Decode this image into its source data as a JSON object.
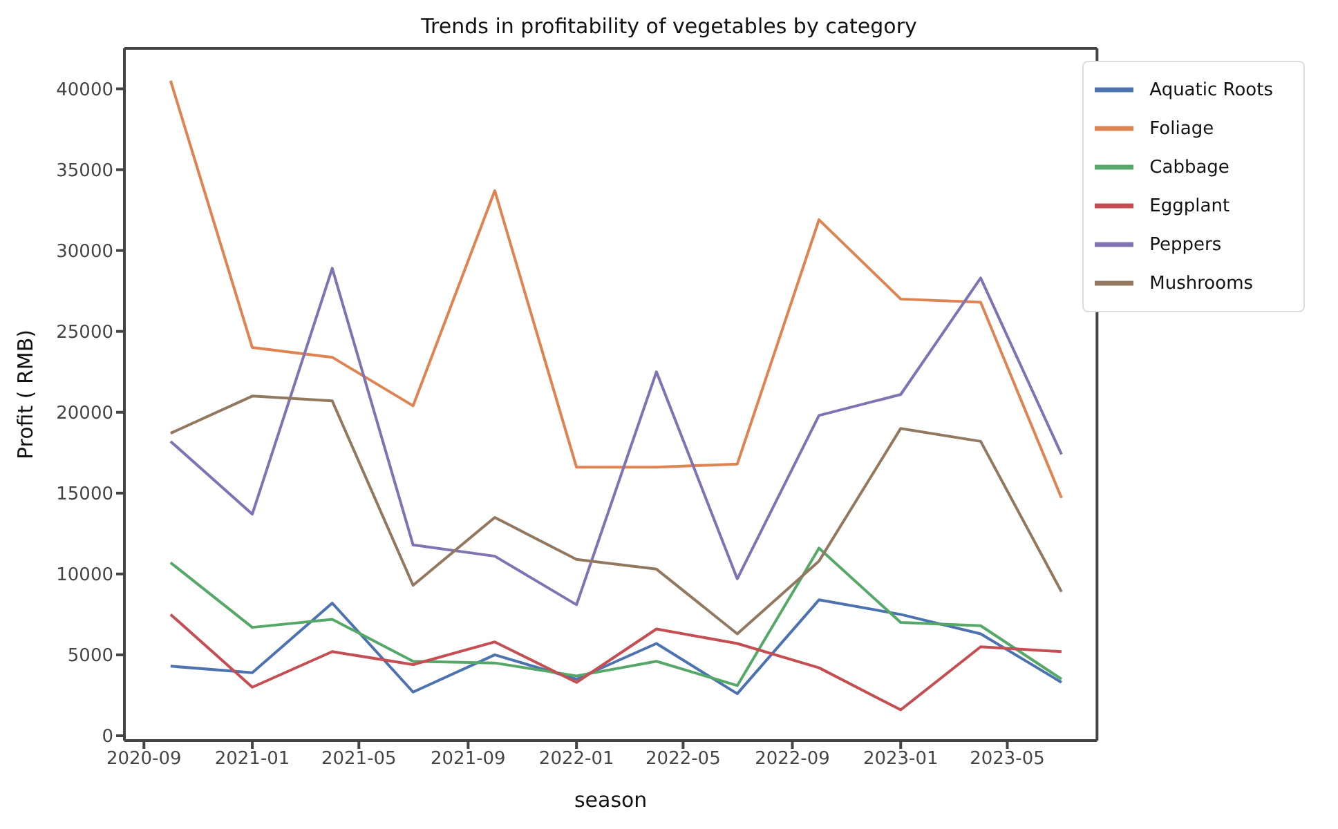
{
  "chart_data": {
    "type": "line",
    "title": "Trends in profitability of vegetables by category",
    "xlabel": "season",
    "ylabel": "Profit ( RMB)",
    "x": [
      "2020-10",
      "2021-01",
      "2021-04",
      "2021-07",
      "2021-10",
      "2022-01",
      "2022-04",
      "2022-07",
      "2022-10",
      "2023-01",
      "2023-04",
      "2023-07"
    ],
    "xlim": [
      "2020-08-10",
      "2023-08-10"
    ],
    "xticks": [
      "2020-09",
      "2021-01",
      "2021-05",
      "2021-09",
      "2022-01",
      "2022-05",
      "2022-09",
      "2023-01",
      "2023-05"
    ],
    "ylim": [
      -300,
      42500
    ],
    "yticks": [
      0,
      5000,
      10000,
      15000,
      20000,
      25000,
      30000,
      35000,
      40000
    ],
    "grid": false,
    "legend": "top right",
    "line_style": "solid",
    "series": [
      {
        "name": "Aquatic Roots",
        "color": "#4c72b0",
        "values": [
          4300,
          3900,
          8200,
          2700,
          5000,
          3500,
          5700,
          2600,
          8400,
          7500,
          6300,
          3300
        ]
      },
      {
        "name": "Foliage",
        "color": "#dd8452",
        "values": [
          40500,
          24000,
          23400,
          20400,
          33700,
          16600,
          16600,
          16800,
          31900,
          27000,
          26800,
          14700
        ]
      },
      {
        "name": "Cabbage",
        "color": "#55a868",
        "values": [
          10700,
          6700,
          7200,
          4600,
          4500,
          3700,
          4600,
          3100,
          11600,
          7000,
          6800,
          3500
        ]
      },
      {
        "name": "Eggplant",
        "color": "#c44e52",
        "values": [
          7500,
          3000,
          5200,
          4400,
          5800,
          3300,
          6600,
          5700,
          4200,
          1600,
          5500,
          5200
        ]
      },
      {
        "name": "Peppers",
        "color": "#8172b3",
        "values": [
          18200,
          13700,
          28900,
          11800,
          11100,
          8100,
          22500,
          9700,
          19800,
          21100,
          28300,
          17400
        ]
      },
      {
        "name": "Mushrooms",
        "color": "#937860",
        "values": [
          18700,
          21000,
          20700,
          9300,
          13500,
          10900,
          10300,
          6300,
          10800,
          19000,
          18200,
          8900
        ]
      }
    ]
  }
}
